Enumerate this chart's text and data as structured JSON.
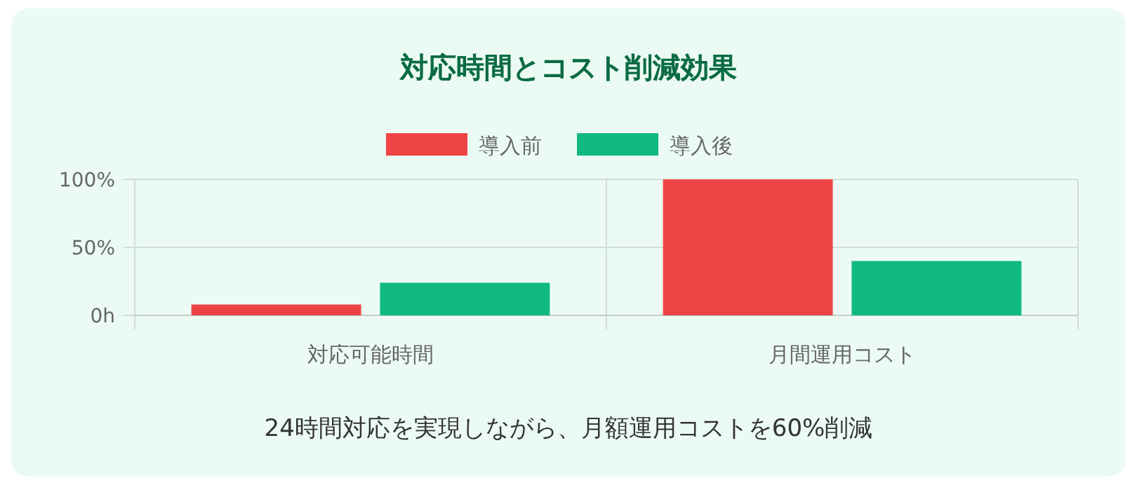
{
  "chart_data": {
    "type": "bar",
    "title": "対応時間とコスト削減効果",
    "categories": [
      "対応可能時間",
      "月間運用コスト"
    ],
    "series": [
      {
        "name": "導入前",
        "color": "#ef4444",
        "values": [
          8,
          100
        ]
      },
      {
        "name": "導入後",
        "color": "#10b981",
        "values": [
          24,
          40
        ]
      }
    ],
    "ylim": [
      0,
      100
    ],
    "yticks": [
      {
        "value": 0,
        "label": "0h"
      },
      {
        "value": 50,
        "label": "50%"
      },
      {
        "value": 100,
        "label": "100%"
      }
    ],
    "grid": true,
    "legend": "top",
    "annotations": [
      "24時間対応を実現しながら、月額運用コストを60%削減"
    ]
  }
}
